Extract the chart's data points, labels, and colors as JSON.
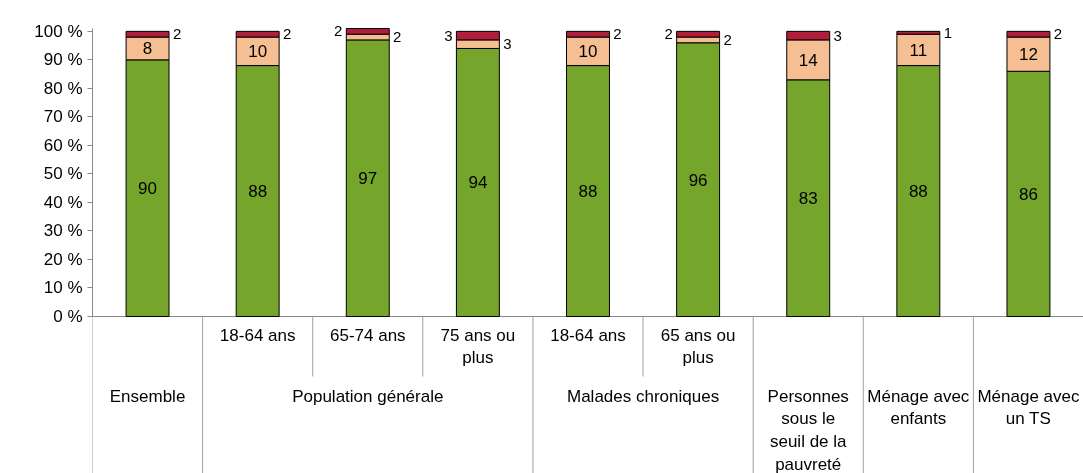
{
  "chart_data": {
    "type": "bar",
    "stacked": true,
    "data_labels": true,
    "categories": [
      "Ensemble",
      "18-64 ans",
      "65-74 ans",
      "75 ans ou plus",
      "18-64 ans",
      "65 ans ou plus",
      "Personnes sous le seuil de la pauvreté",
      "Ménage avec enfants",
      "Ménage avec un TS"
    ],
    "annotations": [
      "Population générale",
      "Malades chroniques"
    ],
    "series": [
      {
        "color": "#76a52c",
        "values": [
          90,
          88,
          97,
          94,
          88,
          96,
          83,
          88,
          86
        ]
      },
      {
        "color": "#f6bf93",
        "values": [
          8,
          10,
          2,
          3,
          10,
          2,
          14,
          11,
          12
        ]
      },
      {
        "color": "#b01e3a",
        "values": [
          2,
          2,
          2,
          3,
          2,
          2,
          3,
          1,
          2
        ]
      }
    ],
    "ylim": [
      0,
      101
    ],
    "yticks": [
      {
        "value": 0,
        "label": "0 %"
      },
      {
        "value": 10,
        "label": "10 %"
      },
      {
        "value": 20,
        "label": "20 %"
      },
      {
        "value": 30,
        "label": "30 %"
      },
      {
        "value": 40,
        "label": "40 %"
      },
      {
        "value": 50,
        "label": "50 %"
      },
      {
        "value": 60,
        "label": "60 %"
      },
      {
        "value": 70,
        "label": "70 %"
      },
      {
        "value": 80,
        "label": "80 %"
      },
      {
        "value": 90,
        "label": "90 %"
      },
      {
        "value": 100,
        "label": "100 %"
      }
    ],
    "grid": false
  }
}
